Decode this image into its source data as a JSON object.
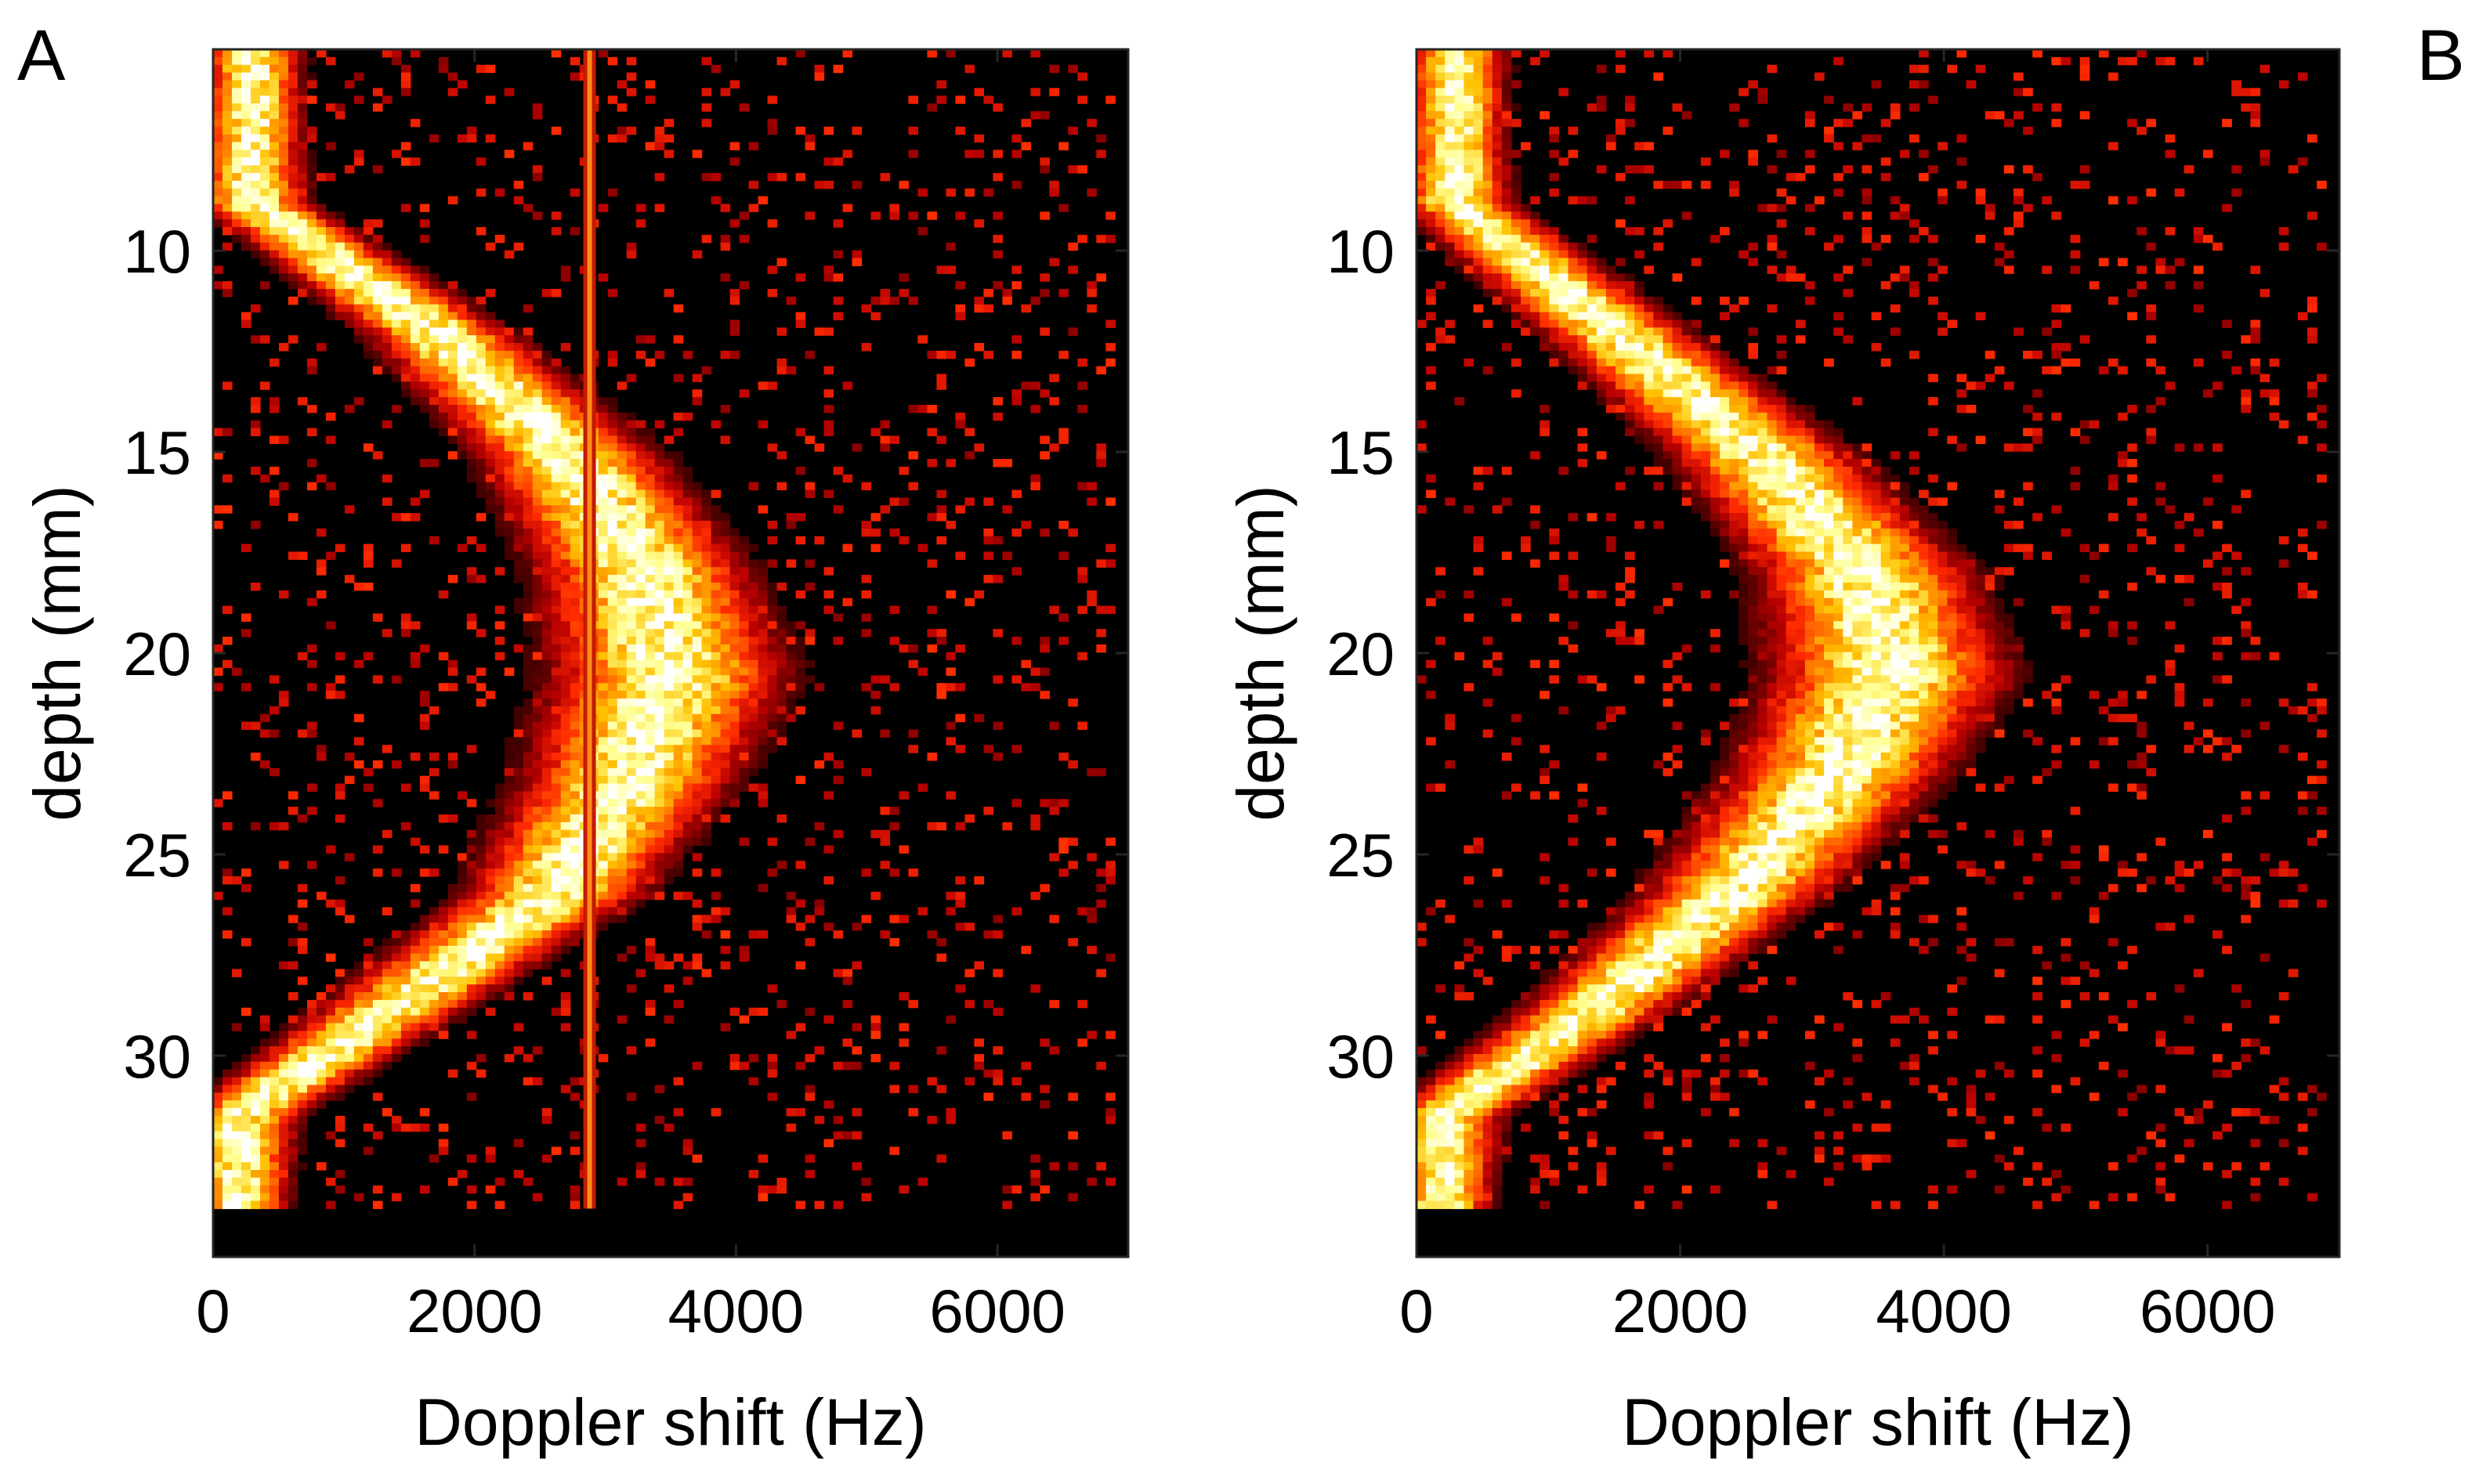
{
  "figure": {
    "background": "#ffffff",
    "colormap": [
      "#000000",
      "#4a0000",
      "#b80000",
      "#ff2a00",
      "#ff7a00",
      "#ffc000",
      "#ffff90",
      "#ffffff"
    ]
  },
  "chart_data": [
    {
      "panel_label": "A",
      "type": "heatmap",
      "title": "",
      "xlabel": "Doppler shift (Hz)",
      "ylabel": "depth (mm)",
      "xlim": [
        0,
        7000
      ],
      "ylim": [
        35,
        5
      ],
      "xticks": [
        0,
        2000,
        4000,
        6000
      ],
      "xtick_labels": [
        "0",
        "2000",
        "4000",
        "6000"
      ],
      "yticks": [
        10,
        15,
        20,
        25,
        30
      ],
      "ytick_labels": [
        "10",
        "15",
        "20",
        "25",
        "30"
      ],
      "data_extent": {
        "x": [
          0,
          6900
        ],
        "depth": [
          5,
          33.8
        ]
      },
      "band_ridge": [
        {
          "depth": 8.8,
          "doppler": 300
        },
        {
          "depth": 12,
          "doppler": 1700
        },
        {
          "depth": 15,
          "doppler": 2700
        },
        {
          "depth": 18,
          "doppler": 3300
        },
        {
          "depth": 20.5,
          "doppler": 3500
        },
        {
          "depth": 23,
          "doppler": 3200
        },
        {
          "depth": 26,
          "doppler": 2600
        },
        {
          "depth": 29,
          "doppler": 1300
        },
        {
          "depth": 31.5,
          "doppler": 200
        }
      ],
      "clutter_line_doppler": 2880,
      "background_noise": "sparse red speckle"
    },
    {
      "panel_label": "B",
      "type": "heatmap",
      "title": "",
      "xlabel": "Doppler shift (Hz)",
      "ylabel": "depth (mm)",
      "xlim": [
        0,
        7000
      ],
      "ylim": [
        35,
        5
      ],
      "xticks": [
        0,
        2000,
        4000,
        6000
      ],
      "xtick_labels": [
        "0",
        "2000",
        "4000",
        "6000"
      ],
      "yticks": [
        10,
        15,
        20,
        25,
        30
      ],
      "ytick_labels": [
        "10",
        "15",
        "20",
        "25",
        "30"
      ],
      "data_extent": {
        "x": [
          0,
          6900
        ],
        "depth": [
          5,
          33.8
        ]
      },
      "band_ridge": [
        {
          "depth": 8.8,
          "doppler": 300
        },
        {
          "depth": 12,
          "doppler": 1500
        },
        {
          "depth": 15,
          "doppler": 2600
        },
        {
          "depth": 18,
          "doppler": 3400
        },
        {
          "depth": 20.5,
          "doppler": 3600
        },
        {
          "depth": 23,
          "doppler": 3200
        },
        {
          "depth": 26,
          "doppler": 2400
        },
        {
          "depth": 29,
          "doppler": 1300
        },
        {
          "depth": 31.5,
          "doppler": 200
        }
      ],
      "clutter_line_doppler": null,
      "background_noise": "sparse red speckle"
    }
  ]
}
